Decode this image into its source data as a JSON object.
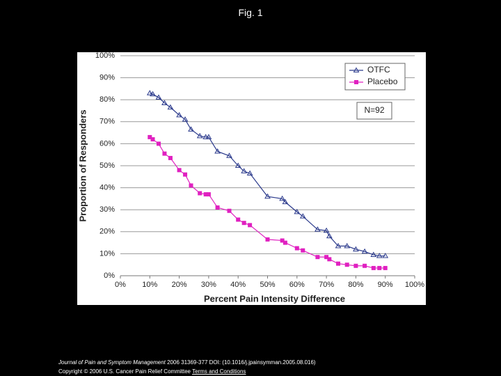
{
  "title": "Fig. 1",
  "chart_data": {
    "type": "line",
    "x_label": "Percent Pain Intensity Difference",
    "y_label": "Proportion of Responders",
    "annotation": "N=92",
    "x": [
      10,
      11,
      13,
      15,
      17,
      20,
      22,
      24,
      27,
      29,
      30,
      33,
      37,
      40,
      42,
      44,
      50,
      55,
      56,
      60,
      62,
      67,
      70,
      71,
      74,
      77,
      80,
      83,
      86,
      88,
      90
    ],
    "series": [
      {
        "name": "OTFC",
        "color": "#2b3a8c",
        "marker": "triangle",
        "values": [
          83,
          82.5,
          81,
          78.5,
          76.5,
          73,
          71,
          66.5,
          63.5,
          63,
          63,
          56.5,
          54.5,
          50,
          47.5,
          46.5,
          36,
          35,
          33.5,
          29,
          27,
          21,
          20.5,
          18,
          13.5,
          13.5,
          12,
          11,
          9.5,
          9,
          9
        ]
      },
      {
        "name": "Placebo",
        "color": "#e020c0",
        "marker": "square",
        "values": [
          63,
          62,
          60,
          55.5,
          53.5,
          48,
          46,
          41,
          37.5,
          37,
          37,
          31,
          29.5,
          25.5,
          24,
          23,
          16.5,
          16,
          15,
          12.5,
          11.5,
          8.5,
          8.5,
          7.5,
          5.5,
          5,
          4.5,
          4.5,
          3.5,
          3.5,
          3.5
        ]
      }
    ],
    "xlim": [
      0,
      100
    ],
    "ylim": [
      0,
      100
    ],
    "xticks": [
      {
        "value": 0,
        "label": "0%"
      },
      {
        "value": 10,
        "label": "10%"
      },
      {
        "value": 20,
        "label": "20%"
      },
      {
        "value": 30,
        "label": "30%"
      },
      {
        "value": 40,
        "label": "40%"
      },
      {
        "value": 50,
        "label": "50%"
      },
      {
        "value": 60,
        "label": "60%"
      },
      {
        "value": 70,
        "label": "70%"
      },
      {
        "value": 80,
        "label": "80%"
      },
      {
        "value": 90,
        "label": "90%"
      },
      {
        "value": 100,
        "label": "100%"
      }
    ],
    "yticks": [
      {
        "value": 0,
        "label": "0%"
      },
      {
        "value": 10,
        "label": "10%"
      },
      {
        "value": 20,
        "label": "20%"
      },
      {
        "value": 30,
        "label": "30%"
      },
      {
        "value": 40,
        "label": "40%"
      },
      {
        "value": 50,
        "label": "50%"
      },
      {
        "value": 60,
        "label": "60%"
      },
      {
        "value": 70,
        "label": "70%"
      },
      {
        "value": 80,
        "label": "80%"
      },
      {
        "value": 90,
        "label": "90%"
      },
      {
        "value": 100,
        "label": "100%"
      }
    ],
    "grid": true,
    "legend": "upper right"
  },
  "footer": {
    "journal": "Journal of Pain and Symptom Management",
    "citation": "2006 31369-377 DOI: (10.1016/j.jpainsymman.2005.08.016)",
    "copyright": "Copyright © 2006 U.S. Cancer Pain Relief Committee",
    "link": "Terms and Conditions"
  }
}
